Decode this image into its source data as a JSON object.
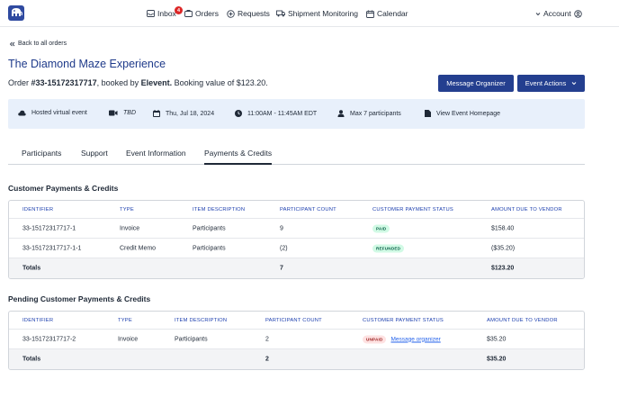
{
  "nav": {
    "inbox": "Inbox",
    "inbox_badge": "4",
    "orders": "Orders",
    "requests": "Requests",
    "shipment": "Shipment Monitoring",
    "calendar": "Calendar",
    "account": "Account"
  },
  "back_link": "Back to all orders",
  "event_title": "The Diamond Maze Experience",
  "order": {
    "prefix": "Order ",
    "number": "#33-15172317717",
    "booked_by_text": ", booked by ",
    "booker": "Elevent.",
    "booking_value_text": " Booking value of $123.20."
  },
  "buttons": {
    "message_organizer": "Message Organizer",
    "event_actions": "Event Actions"
  },
  "info": {
    "type": "Hosted virtual event",
    "location": "TBD",
    "date": "Thu, Jul 18, 2024",
    "time": "11:00AM - 11:45AM EDT",
    "participants": "Max 7 participants",
    "homepage": "View Event Homepage"
  },
  "tabs": [
    "Participants",
    "Support",
    "Event Information",
    "Payments & Credits"
  ],
  "customer_payments": {
    "title": "Customer Payments & Credits",
    "headers": [
      "Identifier",
      "Type",
      "Item Description",
      "Participant Count",
      "Customer Payment Status",
      "Amount Due To Vendor"
    ],
    "rows": [
      {
        "id": "33-15172317717-1",
        "type": "Invoice",
        "desc": "Participants",
        "count": "9",
        "status": "PAID",
        "amount": "$158.40"
      },
      {
        "id": "33-15172317717-1-1",
        "type": "Credit Memo",
        "desc": "Participants",
        "count": "(2)",
        "status": "REFUNDED",
        "amount": "($35.20)"
      }
    ],
    "totals": {
      "label": "Totals",
      "count": "7",
      "amount": "$123.20"
    }
  },
  "pending_payments": {
    "title": "Pending Customer Payments & Credits",
    "headers": [
      "Identifier",
      "Type",
      "Item Description",
      "Participant Count",
      "Customer Payment Status",
      "Amount Due To Vendor"
    ],
    "rows": [
      {
        "id": "33-15172317717-2",
        "type": "Invoice",
        "desc": "Participants",
        "count": "2",
        "status": "UNPAID",
        "link": "Message organizer",
        "amount": "$35.20"
      }
    ],
    "totals": {
      "label": "Totals",
      "count": "2",
      "amount": "$35.20"
    }
  }
}
